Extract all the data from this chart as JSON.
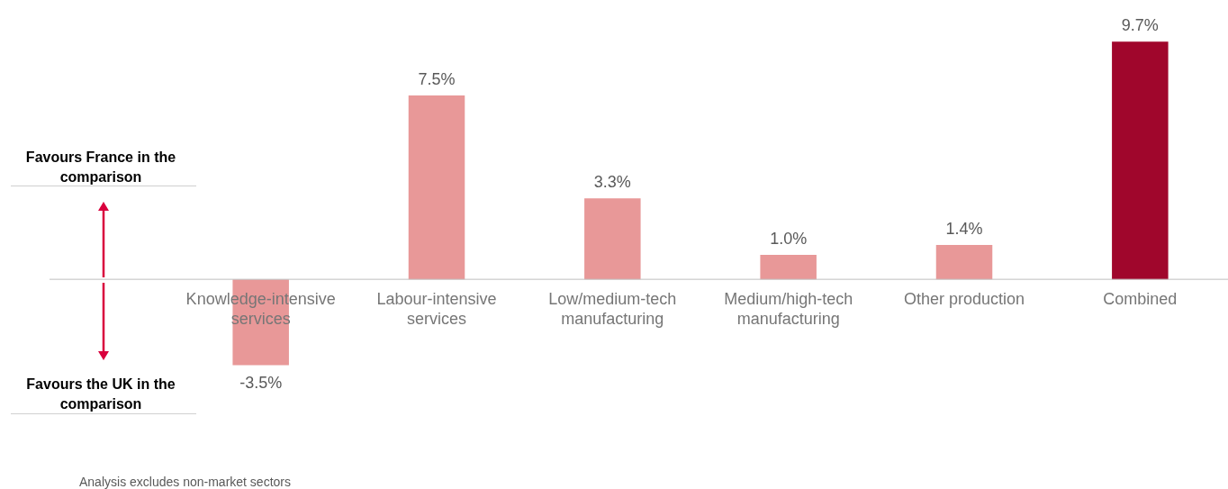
{
  "chart_data": {
    "type": "bar",
    "categories": [
      "Knowledge-intensive services",
      "Labour-intensive services",
      "Low/medium-tech manufacturing",
      "Medium/high-tech manufacturing",
      "Other production",
      "Combined"
    ],
    "values": [
      -3.5,
      7.5,
      3.3,
      1.0,
      1.4,
      9.7
    ],
    "colors": [
      "#e89898",
      "#e89898",
      "#e89898",
      "#e89898",
      "#e89898",
      "#a0062c"
    ],
    "value_labels": [
      "-3.5%",
      "7.5%",
      "3.3%",
      "1.0%",
      "1.4%",
      "9.7%"
    ],
    "annotations": [
      "Favours France in the comparison",
      "Favours the UK in the comparison",
      "Analysis excludes non-market sectors"
    ],
    "legend": false
  }
}
